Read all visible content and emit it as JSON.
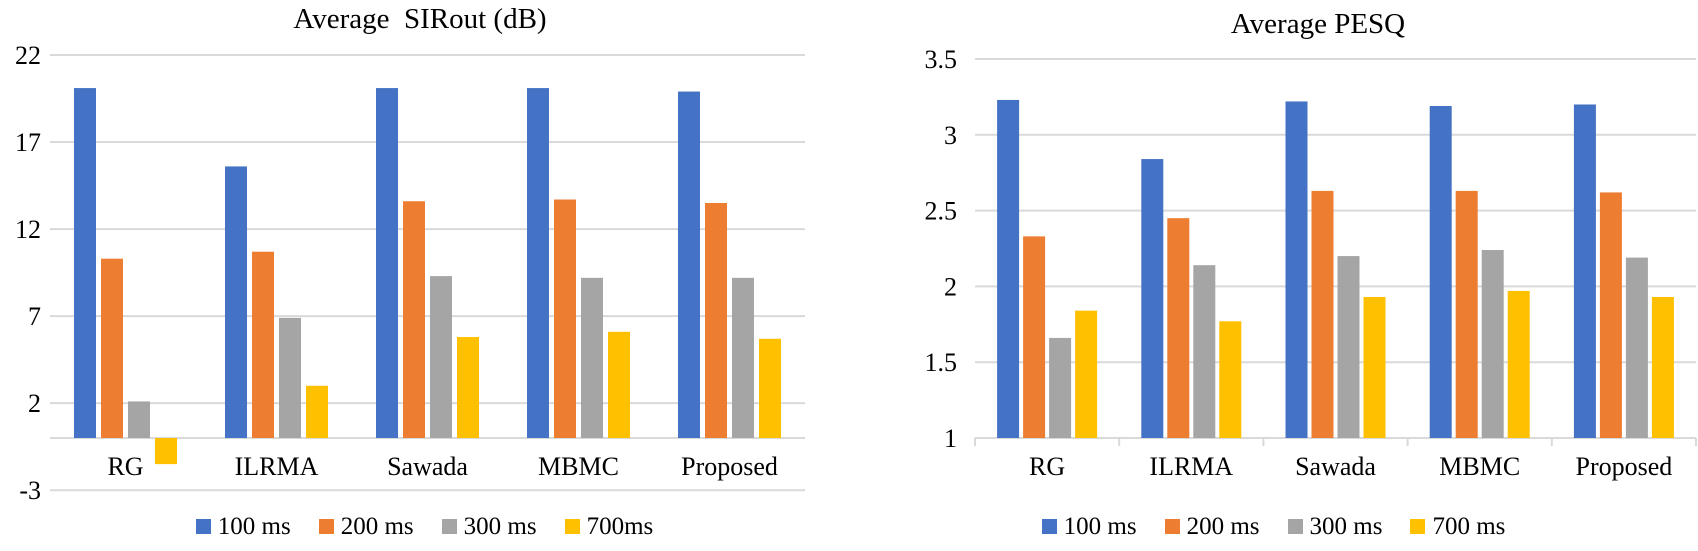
{
  "figure": {
    "background": "#FFFFFF",
    "text_color": "#000000",
    "gridline_color": "#D9D9D9"
  },
  "chart_data": [
    {
      "type": "bar",
      "title": "Average  SIRout (dB)",
      "categories": [
        "RG",
        "ILRMA",
        "Sawada",
        "MBMC",
        "Proposed"
      ],
      "series": [
        {
          "name": "100 ms",
          "color": "#4472C4",
          "values": [
            20.1,
            15.6,
            20.1,
            20.1,
            19.9
          ]
        },
        {
          "name": "200 ms",
          "color": "#ED7D31",
          "values": [
            10.3,
            10.7,
            13.6,
            13.7,
            13.5
          ]
        },
        {
          "name": "300 ms",
          "color": "#A5A5A5",
          "values": [
            2.1,
            6.9,
            9.3,
            9.2,
            9.2
          ]
        },
        {
          "name": "700ms",
          "color": "#FFC000",
          "values": [
            -1.5,
            3.0,
            5.8,
            6.1,
            5.7
          ]
        }
      ],
      "y_ticks": [
        "22",
        "17",
        "12",
        "7",
        "2",
        "-3"
      ],
      "ylim": [
        -3,
        22
      ],
      "bar_base": 0,
      "grid": true,
      "legend_position": "bottom"
    },
    {
      "type": "bar",
      "title": "Average PESQ",
      "categories": [
        "RG",
        "ILRMA",
        "Sawada",
        "MBMC",
        "Proposed"
      ],
      "series": [
        {
          "name": "100 ms",
          "color": "#4472C4",
          "values": [
            3.23,
            2.84,
            3.22,
            3.19,
            3.2
          ]
        },
        {
          "name": "200 ms",
          "color": "#ED7D31",
          "values": [
            2.33,
            2.45,
            2.63,
            2.63,
            2.62
          ]
        },
        {
          "name": "300 ms",
          "color": "#A5A5A5",
          "values": [
            1.66,
            2.14,
            2.2,
            2.24,
            2.19
          ]
        },
        {
          "name": "700 ms",
          "color": "#FFC000",
          "values": [
            1.84,
            1.77,
            1.93,
            1.97,
            1.93
          ]
        }
      ],
      "y_ticks": [
        "3.5",
        "3",
        "2.5",
        "2",
        "1.5",
        "1"
      ],
      "ylim": [
        1,
        3.5
      ],
      "bar_base": 1,
      "grid": true,
      "legend_position": "bottom"
    }
  ]
}
